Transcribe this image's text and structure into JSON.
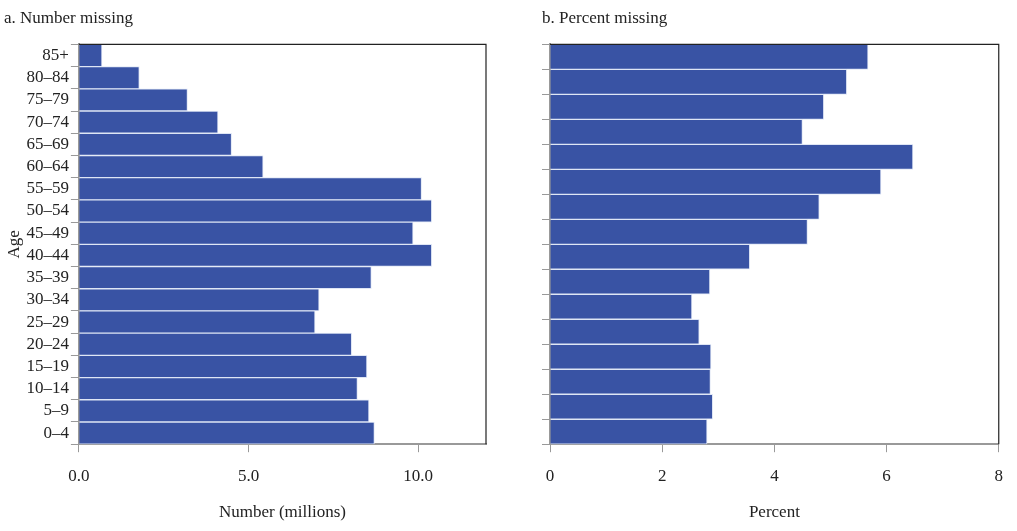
{
  "chart_data": [
    {
      "type": "bar",
      "orientation": "horizontal",
      "title": "a. Number missing",
      "xlabel": "Number (millions)",
      "ylabel": "Age",
      "categories": [
        "85+",
        "80–84",
        "75–79",
        "70–74",
        "65–69",
        "60–64",
        "55–59",
        "50–54",
        "45–49",
        "40–44",
        "35–39",
        "30–34",
        "25–29",
        "20–24",
        "15–19",
        "10–14",
        "5–9",
        "0–4"
      ],
      "values": [
        0.68,
        1.78,
        3.2,
        4.1,
        4.5,
        5.43,
        10.1,
        10.4,
        9.85,
        10.4,
        8.62,
        7.08,
        6.96,
        8.04,
        8.49,
        8.21,
        8.55,
        8.71
      ],
      "color": "#3953a4",
      "xlim": [
        0,
        12
      ],
      "xticks": [
        {
          "value": 0,
          "label": "0.0"
        },
        {
          "value": 5,
          "label": "5.0"
        },
        {
          "value": 10,
          "label": "10.0"
        }
      ],
      "grid": false,
      "legend": false
    },
    {
      "type": "bar",
      "orientation": "horizontal",
      "title": "b. Percent missing",
      "xlabel": "Percent",
      "categories": [
        null,
        null,
        null,
        null,
        null,
        null,
        null,
        null,
        null,
        null,
        null,
        null,
        null,
        null,
        null,
        null
      ],
      "values": [
        5.67,
        5.29,
        4.88,
        4.5,
        6.47,
        5.9,
        4.8,
        4.59,
        3.56,
        2.85,
        2.53,
        2.66,
        2.87,
        2.86,
        2.9,
        2.8
      ],
      "color": "#3953a4",
      "xlim": [
        0,
        8
      ],
      "xticks": [
        0,
        2,
        4,
        6,
        8
      ],
      "grid": false,
      "legend": false,
      "tick_labels": "x"
    }
  ]
}
